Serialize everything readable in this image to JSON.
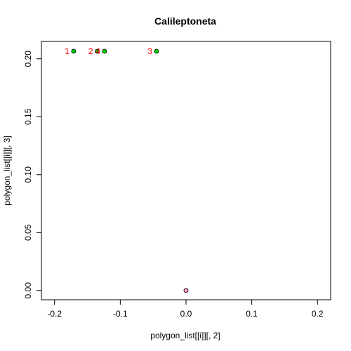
{
  "chart_data": {
    "type": "scatter",
    "title": "Calileptoneta",
    "xlabel": "polygon_list[[i]][, 2]",
    "ylabel": "polygon_list[[i]][, 3]",
    "xlim": [
      -0.22,
      0.22
    ],
    "ylim": [
      -0.008,
      0.215
    ],
    "x_ticks": [
      -0.2,
      -0.1,
      0.0,
      0.1,
      0.2
    ],
    "x_tick_labels": [
      "-0.2",
      "-0.1",
      "0.0",
      "0.1",
      "0.2"
    ],
    "y_ticks": [
      0.0,
      0.05,
      0.1,
      0.15,
      0.2
    ],
    "y_tick_labels": [
      "0.00",
      "0.05",
      "0.10",
      "0.15",
      "0.20"
    ],
    "grid": false,
    "series": [
      {
        "points": [
          {
            "x": -0.171,
            "y": 0.2065,
            "label": "1"
          },
          {
            "x": -0.135,
            "y": 0.2065,
            "label": "2"
          },
          {
            "x": -0.045,
            "y": 0.2065,
            "label": "3"
          },
          {
            "x": -0.124,
            "y": 0.2065,
            "label": "4"
          }
        ],
        "color": "#00cc00",
        "label_color": "#ff0000"
      },
      {
        "points": [
          {
            "x": 0.0,
            "y": 0.0
          }
        ],
        "color": "#ff99cc"
      }
    ]
  }
}
